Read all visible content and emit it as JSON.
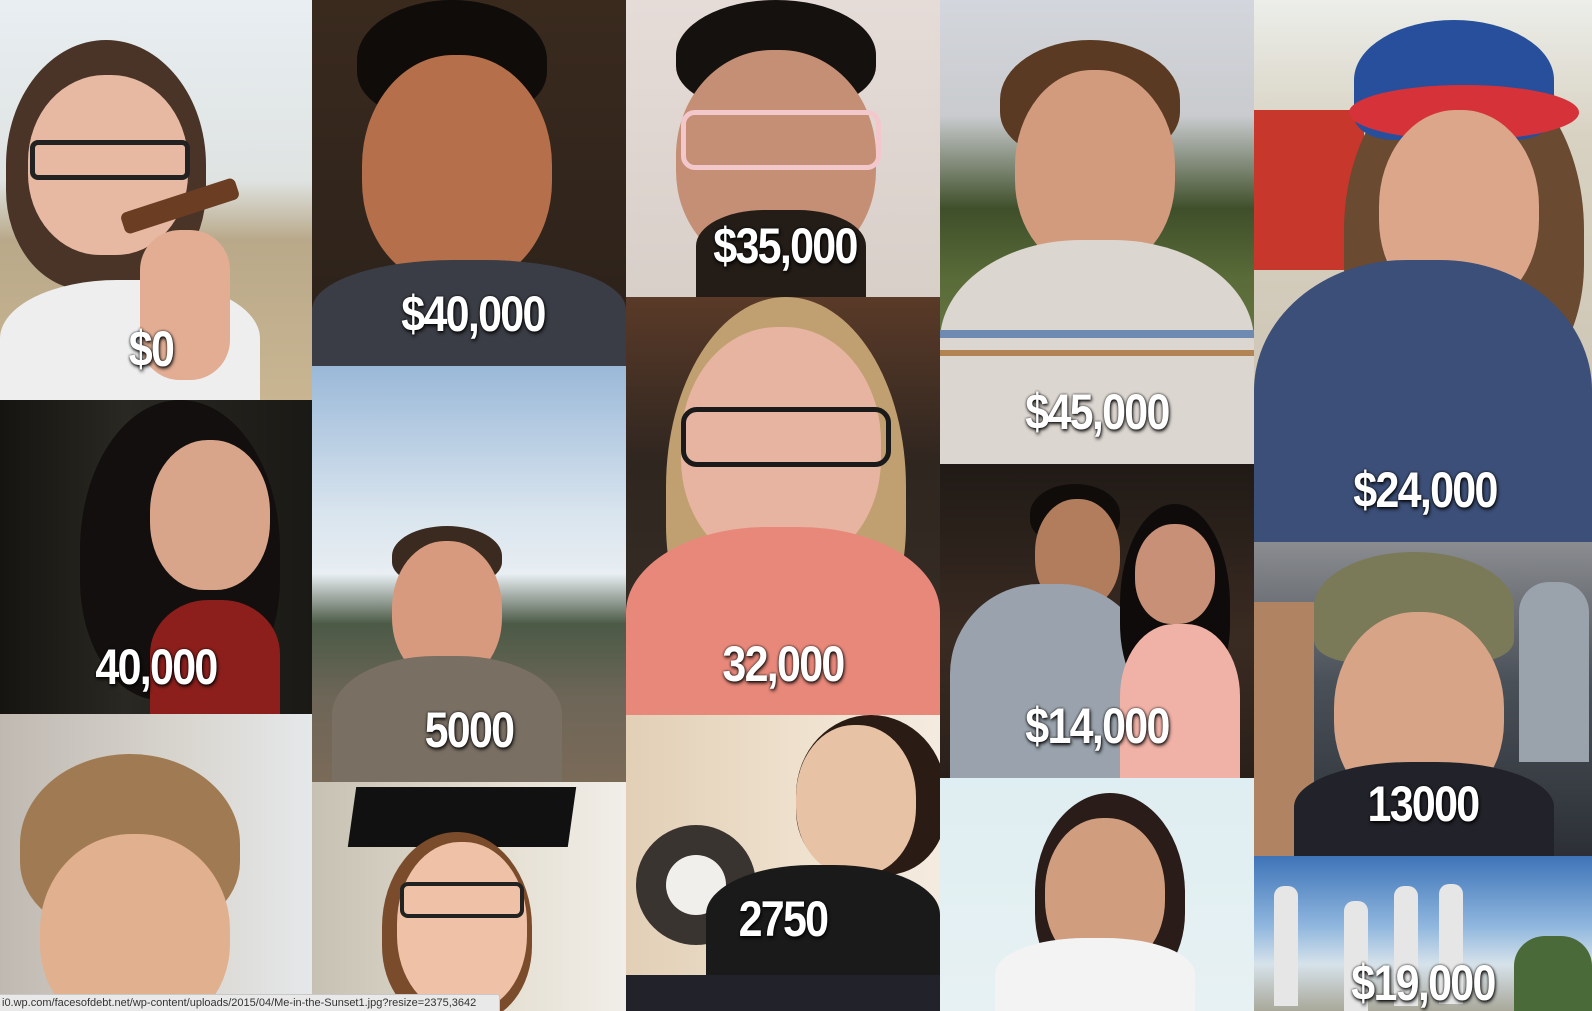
{
  "tiles": [
    {
      "amount": "$0"
    },
    {
      "amount": "$40,000"
    },
    {
      "amount": "$35,000"
    },
    {
      "amount": "$45,000"
    },
    {
      "amount": "$24,000"
    },
    {
      "amount": "40,000"
    },
    {
      "amount": "5000"
    },
    {
      "amount": "32,000"
    },
    {
      "amount": "$14,000"
    },
    {
      "amount": "13000"
    },
    {
      "amount": ""
    },
    {
      "amount": ""
    },
    {
      "amount": "2750"
    },
    {
      "amount": ""
    },
    {
      "amount": "$19,000"
    }
  ],
  "status_bar": {
    "url": "i0.wp.com/facesofdebt.net/wp-content/uploads/2015/04/Me-in-the-Sunset1.jpg?resize=2375,3642"
  },
  "colors": {
    "amount_text": "#ffffff",
    "status_bg": "#e9e9e9"
  }
}
